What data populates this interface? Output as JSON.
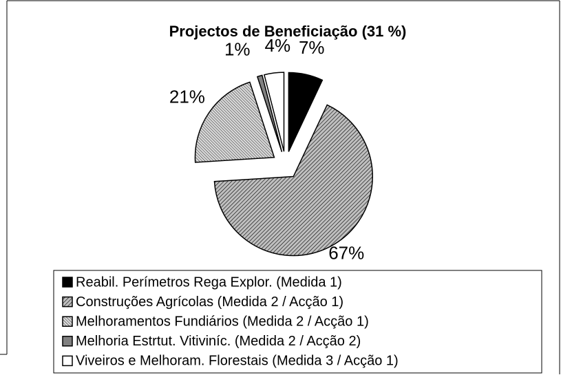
{
  "chart_data": {
    "type": "pie",
    "title": "Projectos de Beneficiação (31 %)",
    "categories": [
      "Reabil. Perímetros Rega Explor. (Medida 1)",
      "Construções Agrícolas (Medida 2 / Acção 1)",
      "Melhoramentos Fundiários (Medida 2 / Acção 1)",
      "Melhoria Estrtut. Vitiviníc. (Medida 2 / Acção 2)",
      "Viveiros e Melhoram. Florestais (Medida 3 / Acção 1)"
    ],
    "values": [
      7,
      67,
      21,
      1,
      4
    ],
    "value_labels": [
      "7%",
      "67%",
      "21%",
      "1%",
      "4%"
    ],
    "colors": [
      "#000000",
      "#bfbfbf",
      "#d9d9d9",
      "#808080",
      "#ffffff"
    ],
    "legend": "bottom"
  }
}
